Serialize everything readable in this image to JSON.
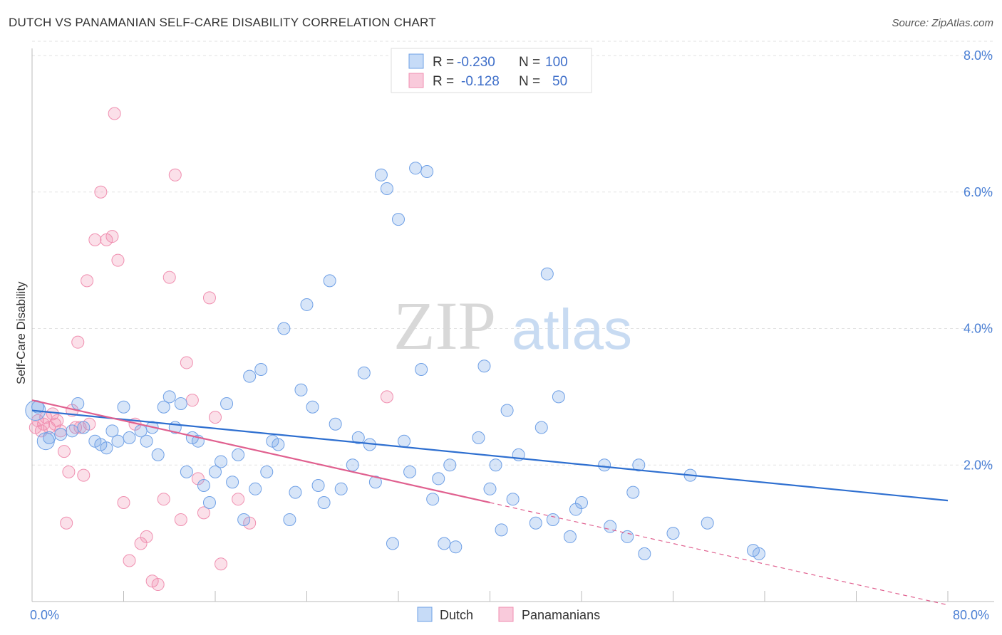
{
  "title": "DUTCH VS PANAMANIAN SELF-CARE DISABILITY CORRELATION CHART",
  "source": "Source: ZipAtlas.com",
  "watermark": {
    "zip": "ZIP",
    "atlas": "atlas"
  },
  "legend": {
    "rows": [
      {
        "r_label": "R =",
        "r_value": "-0.230",
        "n_label": "N =",
        "n_value": "100",
        "color": "#6fa0e6"
      },
      {
        "r_label": "R =",
        "r_value": "-0.128",
        "n_label": "N =",
        "n_value": "50",
        "color": "#f08fb0"
      }
    ]
  },
  "bottom_legend": [
    "Dutch",
    "Panamanians"
  ],
  "chart_data": {
    "type": "scatter",
    "title": "DUTCH VS PANAMANIAN SELF-CARE DISABILITY CORRELATION CHART",
    "ylabel": "Self-Care Disability",
    "xlabel": "",
    "xlim": [
      0,
      80
    ],
    "ylim": [
      0,
      8.0
    ],
    "x_tick_labels": [
      "0.0%",
      "80.0%"
    ],
    "y_tick_labels": [
      "2.0%",
      "4.0%",
      "6.0%",
      "8.0%"
    ],
    "y_ticks": [
      2.0,
      4.0,
      6.0,
      8.0
    ],
    "grid": true,
    "legend_position": "top-center",
    "series": [
      {
        "name": "Dutch",
        "color": "#6fa0e6",
        "line_color": "#2e6fd0",
        "trend": {
          "x": [
            0,
            80
          ],
          "y": [
            2.8,
            1.48
          ],
          "style": "solid"
        },
        "points": [
          [
            0.5,
            2.85
          ],
          [
            1.5,
            2.4
          ],
          [
            2.5,
            2.45
          ],
          [
            3.5,
            2.5
          ],
          [
            4,
            2.9
          ],
          [
            4.5,
            2.55
          ],
          [
            5.5,
            2.35
          ],
          [
            6,
            2.3
          ],
          [
            6.5,
            2.25
          ],
          [
            7,
            2.5
          ],
          [
            7.5,
            2.35
          ],
          [
            8,
            2.85
          ],
          [
            8.5,
            2.4
          ],
          [
            9.5,
            2.5
          ],
          [
            10,
            2.35
          ],
          [
            10.5,
            2.55
          ],
          [
            11,
            2.15
          ],
          [
            11.5,
            2.85
          ],
          [
            12,
            3.0
          ],
          [
            12.5,
            2.55
          ],
          [
            13,
            2.9
          ],
          [
            13.5,
            1.9
          ],
          [
            14,
            2.4
          ],
          [
            14.5,
            2.35
          ],
          [
            15,
            1.7
          ],
          [
            15.5,
            1.45
          ],
          [
            16,
            1.9
          ],
          [
            16.5,
            2.05
          ],
          [
            17,
            2.9
          ],
          [
            17.5,
            1.75
          ],
          [
            18,
            2.15
          ],
          [
            18.5,
            1.2
          ],
          [
            19,
            3.3
          ],
          [
            19.5,
            1.65
          ],
          [
            20,
            3.4
          ],
          [
            20.5,
            1.9
          ],
          [
            21,
            2.35
          ],
          [
            21.5,
            2.3
          ],
          [
            22,
            4.0
          ],
          [
            22.5,
            1.2
          ],
          [
            23,
            1.6
          ],
          [
            23.5,
            3.1
          ],
          [
            24,
            4.35
          ],
          [
            24.5,
            2.85
          ],
          [
            25,
            1.7
          ],
          [
            25.5,
            1.45
          ],
          [
            26,
            4.7
          ],
          [
            26.5,
            2.6
          ],
          [
            27,
            1.65
          ],
          [
            28,
            2.0
          ],
          [
            28.5,
            2.4
          ],
          [
            29,
            3.35
          ],
          [
            29.5,
            2.3
          ],
          [
            30,
            1.75
          ],
          [
            30.5,
            6.25
          ],
          [
            31,
            6.05
          ],
          [
            31.5,
            0.85
          ],
          [
            32,
            5.6
          ],
          [
            32.5,
            2.35
          ],
          [
            33,
            1.9
          ],
          [
            33.5,
            6.35
          ],
          [
            34,
            3.4
          ],
          [
            34.5,
            6.3
          ],
          [
            35,
            1.5
          ],
          [
            35.5,
            1.8
          ],
          [
            36,
            0.85
          ],
          [
            36.5,
            2.0
          ],
          [
            37,
            0.8
          ],
          [
            39,
            2.4
          ],
          [
            39.5,
            3.45
          ],
          [
            40,
            1.65
          ],
          [
            40.5,
            2.0
          ],
          [
            41,
            1.05
          ],
          [
            41.5,
            2.8
          ],
          [
            42,
            1.5
          ],
          [
            42.5,
            2.15
          ],
          [
            44,
            1.15
          ],
          [
            44.5,
            2.55
          ],
          [
            45,
            4.8
          ],
          [
            45.5,
            1.2
          ],
          [
            46,
            3.0
          ],
          [
            47,
            0.95
          ],
          [
            47.5,
            1.35
          ],
          [
            48,
            1.45
          ],
          [
            50,
            2.0
          ],
          [
            50.5,
            1.1
          ],
          [
            52,
            0.95
          ],
          [
            52.5,
            1.6
          ],
          [
            53,
            2.0
          ],
          [
            53.5,
            0.7
          ],
          [
            56,
            1.0
          ],
          [
            57.5,
            1.85
          ],
          [
            59,
            1.15
          ],
          [
            63,
            0.75
          ],
          [
            63.5,
            0.7
          ]
        ]
      },
      {
        "name": "Panamanians",
        "color": "#f08fb0",
        "line_color": "#e0608f",
        "trend": {
          "x": [
            0,
            40
          ],
          "y": [
            2.95,
            1.45
          ],
          "style": "solid",
          "extended_x": [
            40,
            80
          ],
          "extended_y": [
            1.45,
            -0.05
          ],
          "extended_style": "dashed"
        },
        "points": [
          [
            0.3,
            2.55
          ],
          [
            0.5,
            2.65
          ],
          [
            0.8,
            2.5
          ],
          [
            1,
            2.6
          ],
          [
            1.2,
            2.7
          ],
          [
            1.5,
            2.55
          ],
          [
            1.8,
            2.75
          ],
          [
            2,
            2.6
          ],
          [
            2.2,
            2.65
          ],
          [
            2.5,
            2.5
          ],
          [
            2.8,
            2.2
          ],
          [
            3,
            1.15
          ],
          [
            3.2,
            1.9
          ],
          [
            3.5,
            2.8
          ],
          [
            3.8,
            2.55
          ],
          [
            4,
            3.8
          ],
          [
            4.2,
            2.55
          ],
          [
            4.5,
            1.85
          ],
          [
            4.8,
            4.7
          ],
          [
            5,
            2.6
          ],
          [
            5.5,
            5.3
          ],
          [
            6,
            6.0
          ],
          [
            6.5,
            5.3
          ],
          [
            7,
            5.35
          ],
          [
            7.2,
            7.15
          ],
          [
            7.5,
            5.0
          ],
          [
            8,
            1.45
          ],
          [
            8.5,
            0.6
          ],
          [
            9,
            2.6
          ],
          [
            9.5,
            0.85
          ],
          [
            10,
            0.95
          ],
          [
            10.5,
            0.3
          ],
          [
            11,
            0.25
          ],
          [
            11.5,
            1.5
          ],
          [
            12,
            4.75
          ],
          [
            12.5,
            6.25
          ],
          [
            13,
            1.2
          ],
          [
            13.5,
            3.5
          ],
          [
            14,
            2.95
          ],
          [
            14.5,
            1.8
          ],
          [
            15,
            1.3
          ],
          [
            15.5,
            4.45
          ],
          [
            16,
            2.7
          ],
          [
            16.5,
            0.55
          ],
          [
            18,
            1.5
          ],
          [
            19,
            1.15
          ],
          [
            31,
            3.0
          ]
        ]
      }
    ]
  }
}
